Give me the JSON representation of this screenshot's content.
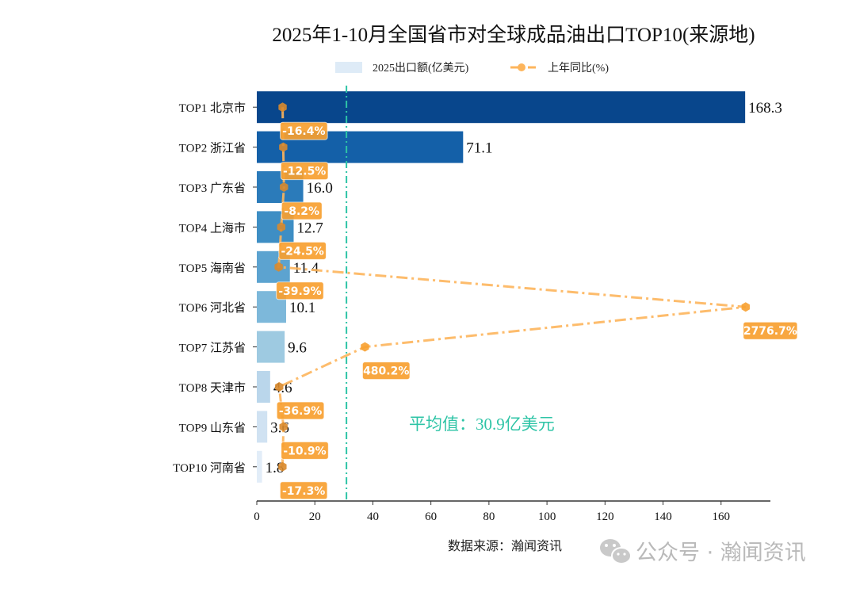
{
  "chart_data": {
    "type": "bar",
    "orientation": "horizontal",
    "title": "2025年1-10月全国省市对全球成品油出口TOP10(来源地)",
    "categories": [
      "TOP1 北京市",
      "TOP2 浙江省",
      "TOP3 广东省",
      "TOP4 上海市",
      "TOP5 海南省",
      "TOP6 河北省",
      "TOP7 江苏省",
      "TOP8 天津市",
      "TOP9 山东省",
      "TOP10 河南省"
    ],
    "series": [
      {
        "name": "2025出口额(亿美元)",
        "type": "bar",
        "values": [
          168.3,
          71.1,
          16.0,
          12.7,
          11.4,
          10.1,
          9.6,
          4.6,
          3.6,
          1.8
        ],
        "colors": [
          "#08468c",
          "#1460a8",
          "#2b7bba",
          "#3e8ec4",
          "#5ca3d0",
          "#7db8da",
          "#9ecae1",
          "#bad6eb",
          "#d0e2f2",
          "#e2edf8"
        ]
      },
      {
        "name": "上年同比(%)",
        "type": "line",
        "values": [
          -16.4,
          -12.5,
          -8.2,
          -24.5,
          -39.9,
          2776.7,
          480.2,
          -36.9,
          -10.9,
          -17.3
        ],
        "labels": [
          "-16.4%",
          "-12.5%",
          "-8.2%",
          "-24.5%",
          "-39.9%",
          "2776.7%",
          "480.2%",
          "-36.9%",
          "-10.9%",
          "-17.3%"
        ],
        "color": "#fdb55c",
        "label_color": "#f8a030",
        "secondary_xlim": [
          -172,
          2926
        ]
      }
    ],
    "value_labels": [
      "168.3",
      "71.1",
      "16.0",
      "12.7",
      "11.4",
      "10.1",
      "9.6",
      "4.6",
      "3.6",
      "1.8"
    ],
    "xlim": [
      0,
      177
    ],
    "xticks": [
      "0",
      "20",
      "40",
      "60",
      "80",
      "100",
      "120",
      "140",
      "160"
    ],
    "average": {
      "value": 30.9,
      "label": "平均值：30.9亿美元",
      "color": "#2ec4a6"
    },
    "legend": {
      "placement": "top-center",
      "items": [
        "2025出口额(亿美元)",
        "上年同比(%)"
      ]
    },
    "grid": false
  },
  "source": "数据来源：瀚闻资讯",
  "watermark": "公众号 · 瀚闻资讯"
}
